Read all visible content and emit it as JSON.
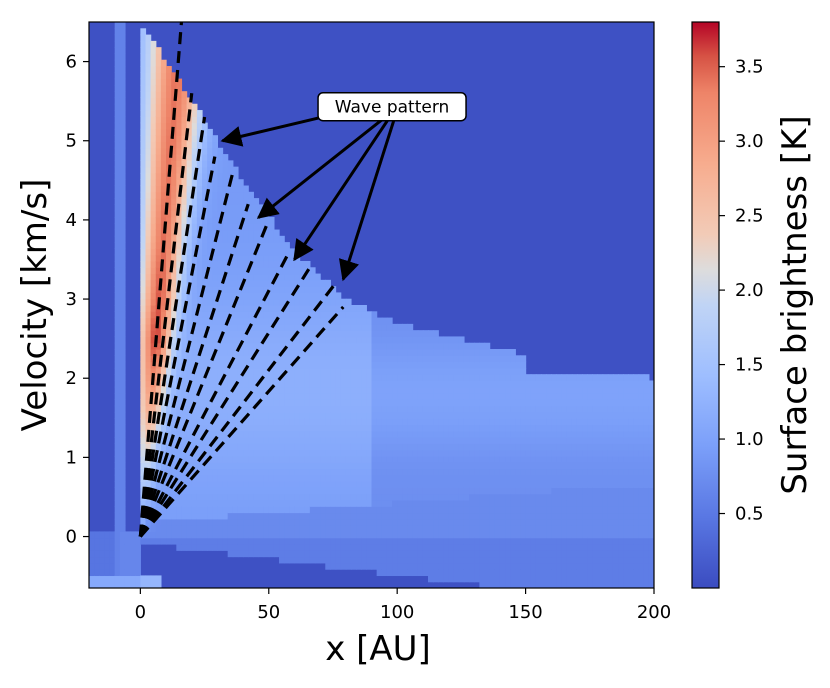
{
  "chart_data": {
    "type": "heatmap",
    "xlabel": "x [AU]",
    "ylabel": "Velocity [km/s]",
    "xlim": [
      -20,
      200
    ],
    "ylim": [
      -0.65,
      6.5
    ],
    "x_ticks": [
      0,
      50,
      100,
      150,
      200
    ],
    "y_ticks": [
      0,
      1,
      2,
      3,
      4,
      5,
      6
    ],
    "colorbar": {
      "label": "Surface brightness [K]",
      "colormap": "coolwarm",
      "range": [
        0.0,
        3.8
      ],
      "ticks": [
        0.5,
        1.0,
        1.5,
        2.0,
        2.5,
        3.0,
        3.5
      ],
      "tick_labels": [
        "0.5",
        "1.0",
        "1.5",
        "2.0",
        "2.5",
        "3.0",
        "3.5"
      ]
    },
    "background_value": 0.05,
    "emission_profile": {
      "description_points_x": [
        0,
        20,
        40,
        60,
        80,
        100,
        150,
        200
      ],
      "upper_velocity_edge": [
        6.5,
        5.5,
        4.5,
        3.6,
        3.0,
        2.7,
        2.3,
        2.0
      ]
    },
    "dashed_lines": [
      {
        "x": [
          0,
          16
        ],
        "y": [
          0,
          6.5
        ]
      },
      {
        "x": [
          0,
          20
        ],
        "y": [
          0,
          5.6
        ]
      },
      {
        "x": [
          0,
          25
        ],
        "y": [
          0,
          5.3
        ]
      },
      {
        "x": [
          0,
          29
        ],
        "y": [
          0,
          4.8
        ]
      },
      {
        "x": [
          0,
          36
        ],
        "y": [
          0,
          4.6
        ]
      },
      {
        "x": [
          0,
          42
        ],
        "y": [
          0,
          4.2
        ]
      },
      {
        "x": [
          0,
          50
        ],
        "y": [
          0,
          4.0
        ]
      },
      {
        "x": [
          0,
          58
        ],
        "y": [
          0,
          3.6
        ]
      },
      {
        "x": [
          0,
          66
        ],
        "y": [
          0,
          3.4
        ]
      },
      {
        "x": [
          0,
          76
        ],
        "y": [
          0,
          3.2
        ]
      },
      {
        "x": [
          0,
          79
        ],
        "y": [
          0,
          2.9
        ]
      }
    ],
    "annotation": {
      "text": "Wave pattern",
      "box_xy": [
        98,
        5.43
      ],
      "arrow_targets": [
        [
          32,
          5.0
        ],
        [
          46,
          4.03
        ],
        [
          60,
          3.5
        ],
        [
          79,
          3.25
        ]
      ]
    },
    "colors": {
      "low": "#3b4cc0",
      "mid": "#dddddd",
      "high": "#b40426",
      "dashed": "#000000"
    }
  }
}
